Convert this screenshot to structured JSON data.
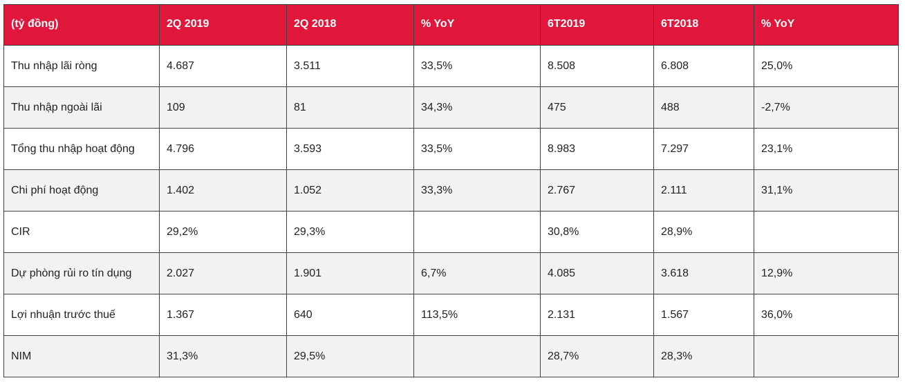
{
  "table": {
    "headers": [
      "(tỷ đồng)",
      "2Q 2019",
      "2Q 2018",
      "% YoY",
      "6T2019",
      "6T2018",
      "% YoY"
    ],
    "rows": [
      [
        "Thu nhập lãi ròng",
        "4.687",
        "3.511",
        "33,5%",
        "8.508",
        "6.808",
        "25,0%"
      ],
      [
        "Thu nhập ngoài lãi",
        "109",
        "81",
        "34,3%",
        "475",
        "488",
        "-2,7%"
      ],
      [
        "Tổng thu nhập hoạt động",
        "4.796",
        "3.593",
        "33,5%",
        "8.983",
        "7.297",
        "23,1%"
      ],
      [
        "Chi phí hoạt động",
        "1.402",
        "1.052",
        "33,3%",
        "2.767",
        "2.111",
        "31,1%"
      ],
      [
        "CIR",
        "29,2%",
        "29,3%",
        "",
        "30,8%",
        "28,9%",
        ""
      ],
      [
        "Dự phòng rủi ro tín dụng",
        "2.027",
        "1.901",
        "6,7%",
        "4.085",
        "3.618",
        "12,9%"
      ],
      [
        "Lợi nhuận trước thuế",
        "1.367",
        "640",
        "113,5%",
        "2.131",
        "1.567",
        "36,0%"
      ],
      [
        "NIM",
        "31,3%",
        "29,5%",
        "",
        "28,7%",
        "28,3%",
        ""
      ]
    ]
  },
  "colors": {
    "header_bg": "#e0173b",
    "header_text": "#ffffff",
    "row_alt_bg": "#f2f2f2",
    "border": "#3f3f3f"
  }
}
